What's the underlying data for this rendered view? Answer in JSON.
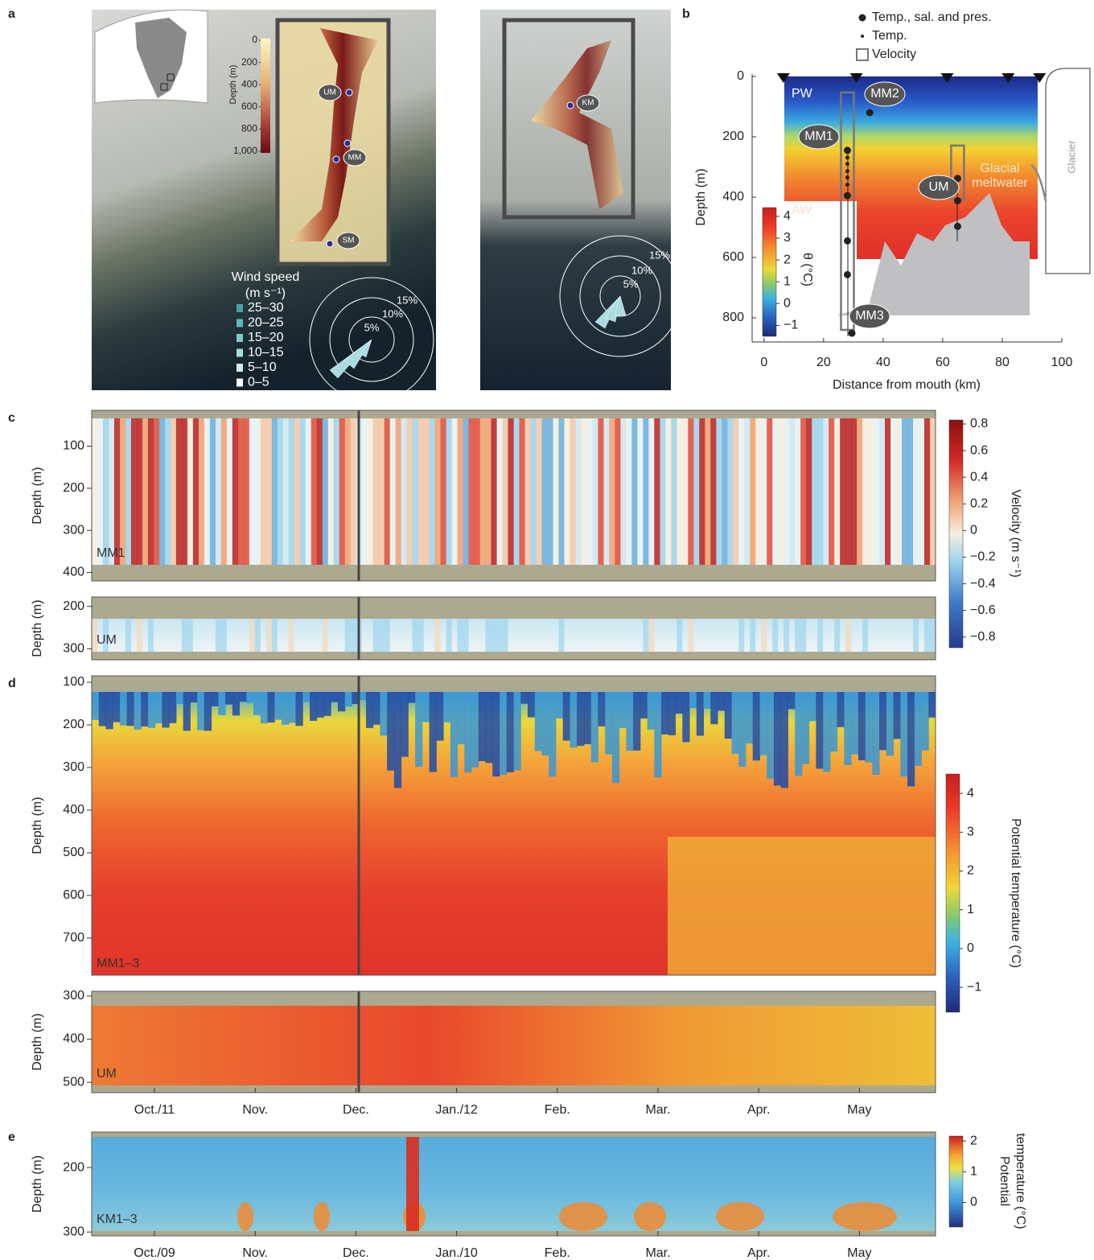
{
  "panel_labels": [
    "a",
    "b",
    "c",
    "d",
    "e"
  ],
  "panel_a": {
    "depth_scale": {
      "label": "Depth (m)",
      "lim": [
        0,
        1000
      ],
      "ticks": [
        0,
        200,
        400,
        600,
        800,
        {
          "value": 1000,
          "label": "1,000"
        }
      ]
    },
    "sites": [
      "UM",
      "MM",
      "SM",
      "KM"
    ],
    "wind_legend": {
      "title": "Wind speed",
      "unit": "(m s⁻¹)",
      "bins": [
        "25–30",
        "20–25",
        "15–20",
        "10–15",
        "5–10",
        "0–5"
      ]
    },
    "rose_rings": [
      "5%",
      "10%",
      "15%"
    ]
  },
  "chart_data": [
    {
      "type": "section",
      "xlabel": "Distance from mouth (km)",
      "ylabel": "Depth (m)",
      "xlim": [
        -4,
        100
      ],
      "ylim": [
        0,
        880
      ],
      "xticks": [
        0,
        20,
        40,
        60,
        80,
        100
      ],
      "yticks": [
        0,
        200,
        400,
        600,
        800
      ],
      "series": [
        {
          "name": "Temp., sal. and pres.",
          "color": "#222222",
          "x": [
            28,
            28,
            28,
            28,
            35.5,
            29.5,
            65,
            65,
            65
          ],
          "values": [
            245,
            395,
            545,
            657,
            120,
            851,
            338,
            412,
            497
          ]
        },
        {
          "name": "Temp.",
          "color": "#222222",
          "x": [
            28,
            28,
            28,
            28,
            28
          ],
          "values": [
            269,
            290,
            314,
            335,
            359
          ]
        }
      ],
      "velocity": {
        "name": "Velocity",
        "color": "#777777",
        "x": [
          28,
          65
        ],
        "top": [
          53,
          229
        ],
        "bottom": [
          840,
          407
        ]
      },
      "stations": [
        6.5,
        31,
        61.5,
        82,
        92.5
      ],
      "moorings": [
        "MM1",
        "MM2",
        "MM3",
        "UM"
      ],
      "water_masses": [
        "PW",
        "AW"
      ],
      "meltwater": [
        "Glacial",
        "meltwater"
      ],
      "glacier": "Glacier",
      "colorbar": {
        "label": "θ (°C)",
        "lim": [
          -1.5,
          4.4
        ],
        "ticks": [
          4,
          3,
          2,
          1,
          0,
          {
            "value": -1,
            "label": "−1"
          }
        ]
      }
    },
    {
      "type": "heatmap",
      "label": "MM1",
      "ylabel": "Depth (m)",
      "ylim": [
        15,
        420
      ],
      "yticks": [
        100,
        200,
        300,
        400
      ],
      "colorbar": {
        "label": "Velocity (m s⁻¹)",
        "lim": [
          -0.88,
          0.83
        ],
        "ticks": [
          0.8,
          0.6,
          0.4,
          0.2,
          0,
          {
            "value": -0.2,
            "label": "−0.2"
          },
          {
            "value": -0.4,
            "label": "−0.4"
          },
          {
            "value": -0.6,
            "label": "−0.6"
          },
          {
            "value": -0.8,
            "label": "−0.8"
          }
        ]
      }
    },
    {
      "type": "heatmap",
      "label": "UM",
      "ylabel": "Depth (m)",
      "ylim": [
        178,
        326
      ],
      "yticks": [
        200,
        300
      ]
    },
    {
      "type": "heatmap",
      "label": "MM1–3",
      "ylabel": "Depth (m)",
      "ylim": [
        85,
        787
      ],
      "yticks": [
        100,
        200,
        300,
        400,
        500,
        600,
        700
      ],
      "colorbar": {
        "label": "Potential temperature (°C)",
        "lim": [
          -1.64,
          4.5
        ],
        "ticks": [
          4,
          3,
          2,
          1,
          0,
          {
            "value": -1,
            "label": "−1"
          }
        ]
      }
    },
    {
      "type": "heatmap",
      "label": "UM",
      "ylabel": "Depth (m)",
      "ylim": [
        289,
        524
      ],
      "yticks": [
        300,
        400,
        500
      ],
      "categories": [
        "Oct./11",
        "Nov.",
        "Dec.",
        "Jan./12",
        "Feb.",
        "Mar.",
        "Apr.",
        "May"
      ]
    },
    {
      "type": "heatmap",
      "label": "KM1–3",
      "ylabel": "Depth (m)",
      "ylim": [
        145,
        306
      ],
      "yticks": [
        200,
        300
      ],
      "categories": [
        "Oct./09",
        "Nov.",
        "Dec.",
        "Jan./10",
        "Feb.",
        "Mar.",
        "Apr.",
        "May"
      ],
      "colorbar": {
        "label": [
          "Potential",
          "temperature (°C)"
        ],
        "lim": [
          -0.8,
          2.16
        ],
        "ticks": [
          2,
          1,
          0
        ]
      }
    }
  ]
}
